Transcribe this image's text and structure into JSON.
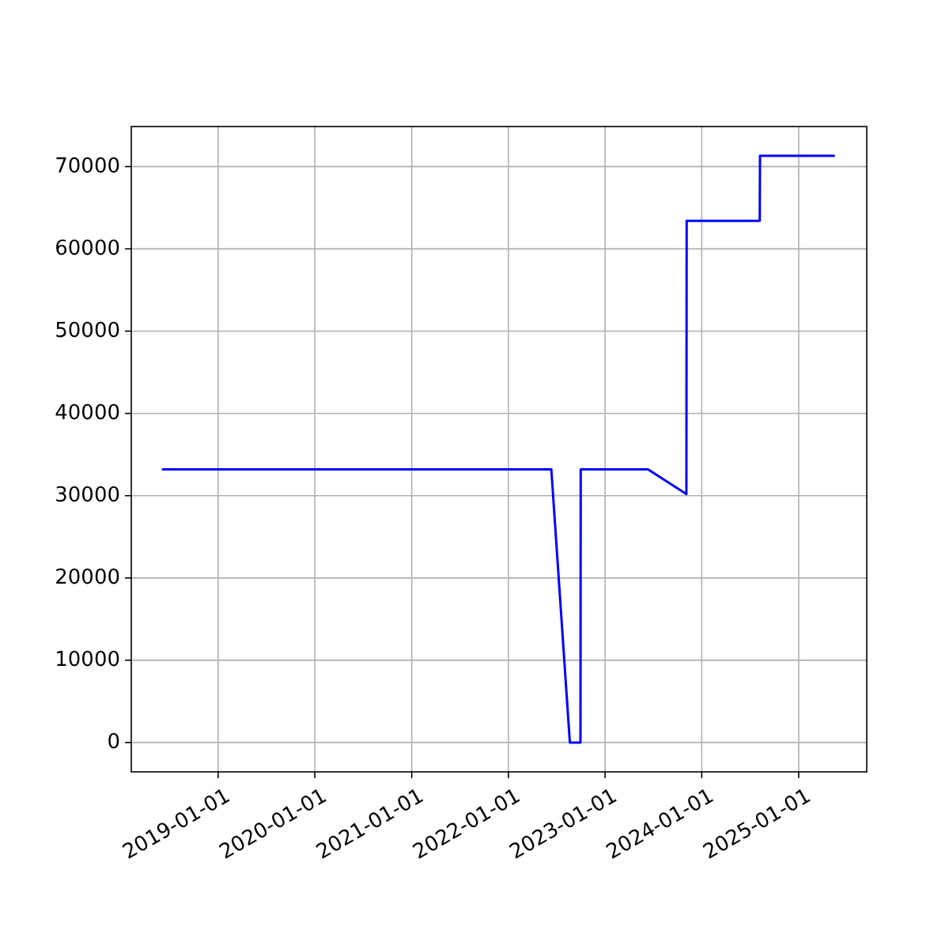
{
  "chart_data": {
    "type": "line",
    "x": [
      "2018-06-06",
      "2022-06-12",
      "2022-08-21",
      "2022-09-30",
      "2022-10-01",
      "2023-06-12",
      "2023-11-04",
      "2023-11-05",
      "2024-08-07",
      "2024-08-08",
      "2025-05-14"
    ],
    "series": [
      {
        "color": "#0000ff",
        "values": [
          33200,
          33200,
          0,
          0,
          33200,
          33200,
          30200,
          63400,
          63400,
          71300,
          71300
        ]
      }
    ],
    "xlim": [
      "2018-02-07",
      "2025-09-15"
    ],
    "xticks": [
      {
        "value": "2019-01-01",
        "label": "2019-01-01"
      },
      {
        "value": "2020-01-01",
        "label": "2020-01-01"
      },
      {
        "value": "2021-01-01",
        "label": "2021-01-01"
      },
      {
        "value": "2022-01-01",
        "label": "2022-01-01"
      },
      {
        "value": "2023-01-01",
        "label": "2023-01-01"
      },
      {
        "value": "2024-01-01",
        "label": "2024-01-01"
      },
      {
        "value": "2025-01-01",
        "label": "2025-01-01"
      }
    ],
    "ylim": [
      -3565,
      74865
    ],
    "yticks": [
      0,
      10000,
      20000,
      30000,
      40000,
      50000,
      60000,
      70000
    ],
    "grid": true
  }
}
